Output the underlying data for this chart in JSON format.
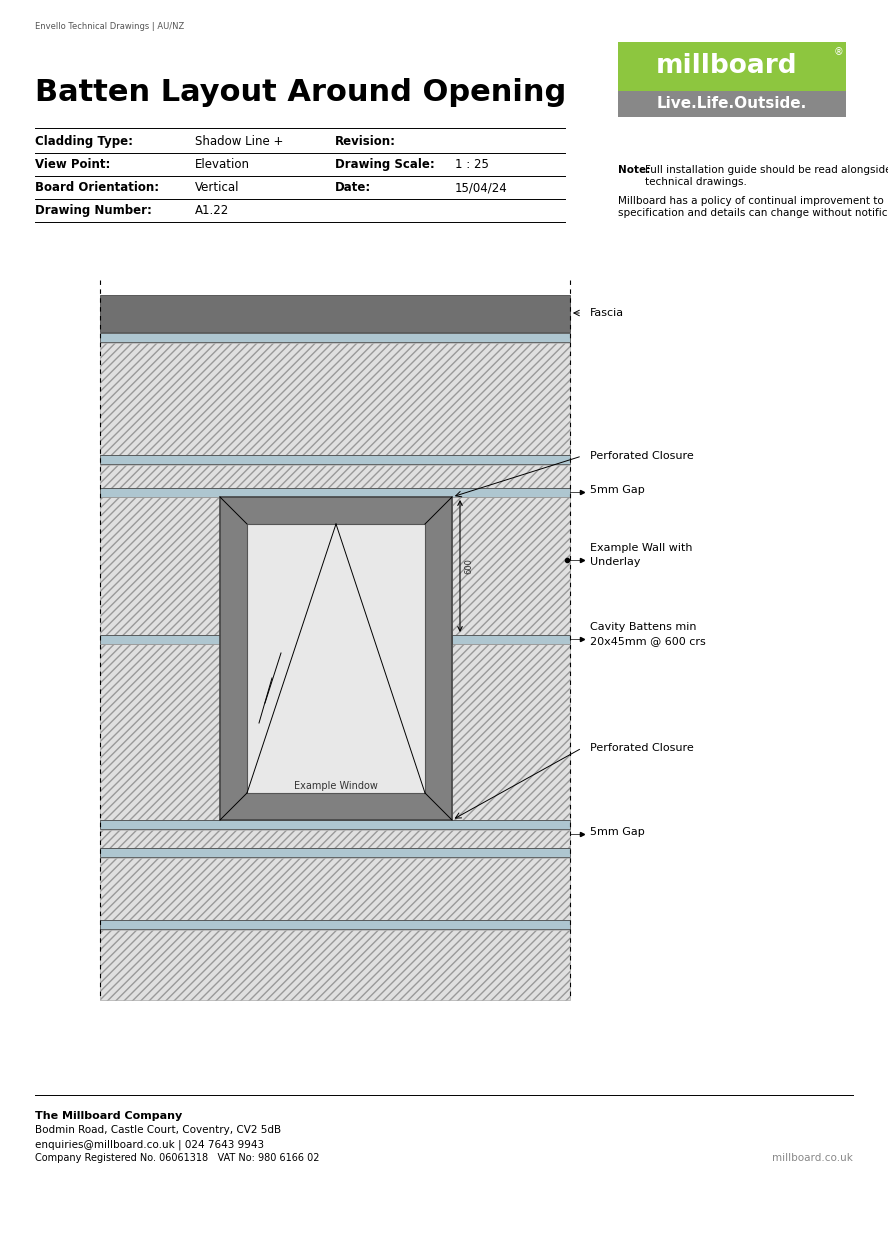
{
  "page_width": 8.88,
  "page_height": 12.59,
  "bg_color": "#ffffff",
  "title": "Batten Layout Around Opening",
  "subtitle": "Envello Technical Drawings | AU/NZ",
  "table_rows": [
    {
      "label": "Cladding Type:",
      "value": "Shadow Line +",
      "label2": "Revision:",
      "value2": ""
    },
    {
      "label": "View Point:",
      "value": "Elevation",
      "label2": "Drawing Scale:",
      "value2": "1 : 25"
    },
    {
      "label": "Board Orientation:",
      "value": "Vertical",
      "label2": "Date:",
      "value2": "15/04/24"
    },
    {
      "label": "Drawing Number:",
      "value": "A1.22",
      "label2": "",
      "value2": ""
    }
  ],
  "logo_green": "#8dc63f",
  "logo_gray": "#888888",
  "logo_text": "millboard",
  "logo_tagline": "Live.Life.Outside.",
  "note_bold": "Note:",
  "note_text": " Full installation guide should be read alongside the\ntechnical drawings.",
  "note2_text": "Millboard has a policy of continual improvement to its\nspecification and details can change without notification",
  "footer_company": "The Millboard Company",
  "footer_address": "Bodmin Road, Castle Court, Coventry, CV2 5dB",
  "footer_email": "enquiries@millboard.co.uk | 024 7643 9943",
  "footer_reg": "Company Registered No. 06061318   VAT No: 980 6166 02",
  "footer_web": "millboard.co.uk",
  "hatch_color": "#c8c8c8",
  "fascia_color": "#707070",
  "batten_color": "#aec6d0",
  "window_frame_color": "#808080",
  "annotations": {
    "fascia": "Fascia",
    "perf_closure_top": "Perforated Closure",
    "gap_5mm_top": "5mm Gap",
    "wall_underlay": "Example Wall with\nUnderlay",
    "cavity_battens": "Cavity Battens min\n20x45mm @ 600 crs",
    "perf_closure_bot": "Perforated Closure",
    "gap_5mm_bot": "5mm Gap",
    "window_label": "Example Window",
    "dim_600": "600"
  }
}
